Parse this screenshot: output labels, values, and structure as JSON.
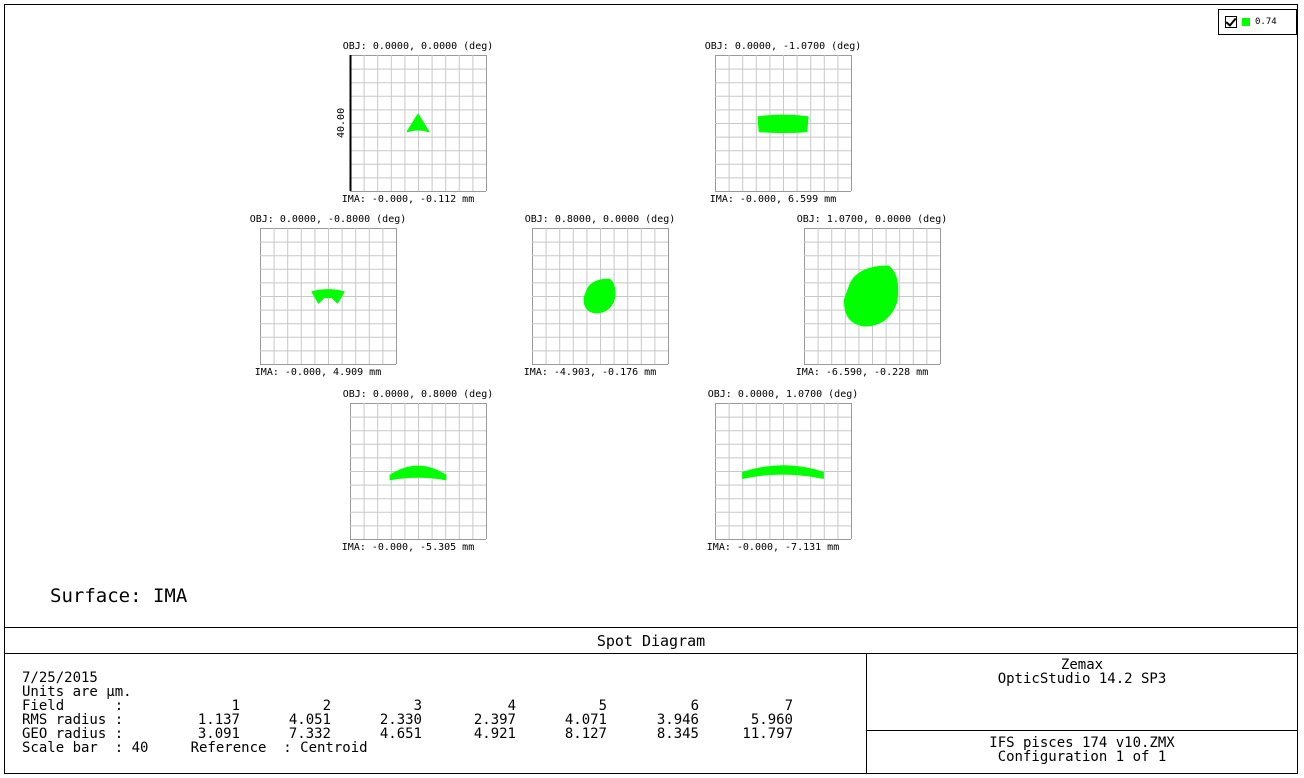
{
  "legend": {
    "checked": true,
    "swatch_color": "#00ff00",
    "label": "0.74"
  },
  "surface_label": "Surface: IMA",
  "scale_bar_label": "40.00",
  "title": "Spot Diagram",
  "chart_data": {
    "type": "scatter",
    "title": "Spot Diagram",
    "spot_color": "#00ff00",
    "scale_bar": 40,
    "grid_divisions": 10,
    "units": "µm",
    "panels": [
      {
        "field": 1,
        "obj_label": "OBJ: 0.0000, 0.0000 (deg)",
        "ima_label": "IMA: -0.000, -0.112 mm",
        "spot_shape": "triangle",
        "spot_center": [
          0,
          0
        ],
        "spot_width": 6.2,
        "spot_height": 5.0
      },
      {
        "field": 2,
        "obj_label": "OBJ: 0.0000, -1.0700 (deg)",
        "ima_label": "IMA: -0.000, 6.599 mm",
        "spot_shape": "flat-bar",
        "spot_center": [
          0,
          0
        ],
        "spot_width": 14.6,
        "spot_height": 5.0
      },
      {
        "field": 3,
        "obj_label": "OBJ: 0.0000, -0.8000 (deg)",
        "ima_label": "IMA: -0.000, 4.909 mm",
        "spot_shape": "arch-down",
        "spot_center": [
          0,
          0
        ],
        "spot_width": 9.3,
        "spot_height": 4.0
      },
      {
        "field": 4,
        "obj_label": "OBJ: 0.8000, 0.0000 (deg)",
        "ima_label": "IMA: -4.903, -0.176 mm",
        "spot_shape": "blob",
        "spot_center": [
          0,
          0
        ],
        "spot_width": 9.2,
        "spot_height": 9.8
      },
      {
        "field": 5,
        "obj_label": "OBJ: 1.0700, 0.0000 (deg)",
        "ima_label": "IMA: -6.590, -0.228 mm",
        "spot_shape": "blob",
        "spot_center": [
          0,
          0
        ],
        "spot_width": 16.0,
        "spot_height": 17.5
      },
      {
        "field": 6,
        "obj_label": "OBJ: 0.0000, 0.8000 (deg)",
        "ima_label": "IMA: -0.000, -5.305 mm",
        "spot_shape": "arch-up",
        "spot_center": [
          0,
          0
        ],
        "spot_width": 16.3,
        "spot_height": 5.0
      },
      {
        "field": 7,
        "obj_label": "OBJ: 0.0000, 1.0700 (deg)",
        "ima_label": "IMA: -0.000, -7.131 mm",
        "spot_shape": "arc",
        "spot_center": [
          0,
          0
        ],
        "spot_width": 23.6,
        "spot_height": 4.2
      }
    ]
  },
  "info": {
    "date": "7/25/2015",
    "units_line": "Units are µm.",
    "field_label": "Field      :",
    "rms_label": "RMS radius :",
    "geo_label": "GEO radius :",
    "scale_line": "Scale bar  : 40     Reference  : Centroid",
    "fields": [
      "1",
      "2",
      "3",
      "4",
      "5",
      "6",
      "7"
    ],
    "rms": [
      "1.137",
      "4.051",
      "2.330",
      "2.397",
      "4.071",
      "3.946",
      "5.960"
    ],
    "geo": [
      "3.091",
      "7.332",
      "4.651",
      "4.921",
      "8.127",
      "8.345",
      "11.797"
    ]
  },
  "company": {
    "name": "Zemax",
    "product": "OpticStudio 14.2 SP3"
  },
  "file": {
    "name": "IFS pisces 174 v10.ZMX",
    "config": "Configuration 1 of 1"
  }
}
